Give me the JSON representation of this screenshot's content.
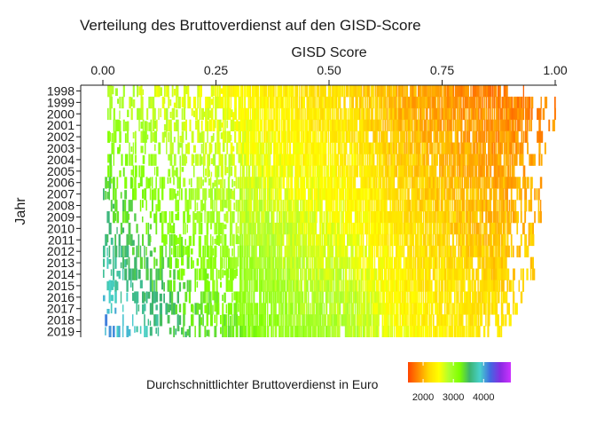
{
  "chart_data": {
    "type": "heatmap",
    "title": "Verteilung des Bruttoverdienst auf den GISD-Score",
    "xlabel": "GISD Score",
    "ylabel": "Jahr",
    "x_axis_position": "top",
    "xlim": [
      0,
      1
    ],
    "x_ticks": [
      0,
      0.25,
      0.5,
      0.75,
      1
    ],
    "x_tick_labels": [
      "0.00",
      "0.25",
      "0.50",
      "0.75",
      "1.00"
    ],
    "years": [
      "1998",
      "1999",
      "2000",
      "2001",
      "2002",
      "2003",
      "2004",
      "2005",
      "2006",
      "2007",
      "2008",
      "2009",
      "2010",
      "2011",
      "2012",
      "2013",
      "2014",
      "2015",
      "2016",
      "2017",
      "2018",
      "2019"
    ],
    "legend": {
      "title": "Durchschnittlichter Bruttoverdienst in Euro",
      "position": "bottom",
      "range": [
        1500,
        4900
      ],
      "ticks": [
        2000,
        3000,
        4000
      ],
      "tick_labels": [
        "2000",
        "3000",
        "4000"
      ],
      "colors": [
        "#ff4500",
        "#ff8c00",
        "#ffd700",
        "#ffff00",
        "#adff2f",
        "#7fff00",
        "#3cb371",
        "#48d1cc",
        "#4169e1",
        "#8a2be2",
        "#cc33ff"
      ]
    },
    "color_scale": "rainbow-reversed (low = red, high = violet)",
    "income_by_gisd_profile": {
      "gisd": [
        0.0,
        0.05,
        0.1,
        0.15,
        0.2,
        0.25,
        0.3,
        0.35,
        0.4,
        0.45,
        0.5,
        0.55,
        0.6,
        0.65,
        0.7,
        0.75,
        0.8,
        0.85,
        0.9,
        0.95,
        1.0
      ],
      "income_1998": [
        2900,
        2800,
        2700,
        2650,
        2600,
        2550,
        2450,
        2400,
        2350,
        2300,
        2250,
        2200,
        2100,
        2000,
        1950,
        1900,
        1850,
        1800,
        1780,
        1760,
        1750
      ],
      "income_2019": [
        4100,
        3900,
        3700,
        3550,
        3400,
        3300,
        3200,
        3100,
        3000,
        2950,
        2900,
        2850,
        2700,
        2550,
        2450,
        2400,
        2350,
        2300,
        2300,
        2300,
        2300
      ]
    },
    "coverage_range_by_year": {
      "start": [
        0.01,
        0.01,
        0.01,
        0.01,
        0.01,
        0.01,
        0.01,
        0.01,
        0.0,
        0.0,
        0.0,
        0.0,
        0.0,
        0.0,
        0.0,
        0.0,
        0.0,
        0.0,
        0.0,
        0.0,
        0.0,
        0.0
      ],
      "end": [
        0.93,
        1.0,
        1.0,
        1.0,
        0.98,
        0.98,
        0.97,
        0.97,
        0.97,
        0.97,
        0.97,
        0.97,
        0.96,
        0.95,
        0.96,
        0.95,
        0.95,
        0.93,
        0.93,
        0.92,
        0.9,
        0.89
      ]
    }
  }
}
